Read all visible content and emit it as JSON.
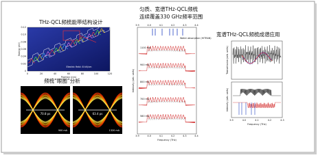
{
  "panels": [
    {
      "title": "THz-QCL频梳能带结构设计",
      "y_label": "Energy (eV)",
      "x_label": "Position (nm)",
      "annotation": "Electric field: 8 kV/cm",
      "xticks": [
        "0",
        "20",
        "40",
        "60",
        "80",
        "100",
        "120"
      ],
      "yticks": [
        "0",
        "0.02",
        "0.04",
        "0.06",
        "0.08",
        "0.10",
        "0.12"
      ]
    },
    {
      "title": "频梳“眼图”分析",
      "eyes": [
        {
          "width": "70.8 ps",
          "current": "900 mA"
        },
        {
          "width": "63.4 ps",
          "current": "1320 mA"
        }
      ]
    },
    {
      "title_lines": [
        "匀质、宽谱THz-QCL频梳",
        "连续覆盖330 GHz频率范围"
      ],
      "annotation": "Water absorption (HITRAN)",
      "traces": [
        "1100 mA",
        "900 mA",
        "800 mA",
        "700 mA",
        "580 mA"
      ],
      "x_label": "Frequency (THz)",
      "y_label": "Intensity (arb. units)",
      "xticks": [
        "3.9",
        "4.0",
        "4.1",
        "4.2",
        "4.3",
        "4.4"
      ]
    },
    {
      "title": "宽谱THz-QCL频梳成谱应用",
      "x_label": "Frequency (THz)",
      "y_label_top": "Transmission (arb. units)",
      "y_label_bottom": "Intensity (arb. units)",
      "xticks": [
        "3.9",
        "4.0",
        "4.1",
        "4.2",
        "4.3"
      ]
    }
  ]
}
